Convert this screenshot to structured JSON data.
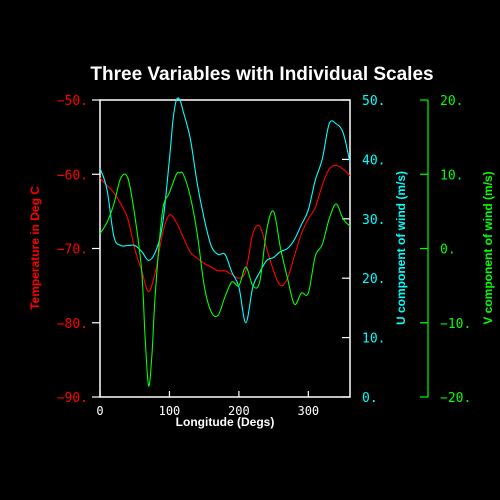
{
  "chart_data": {
    "type": "line",
    "title": "Three Variables with Individual Scales",
    "xlabel": "Longitude (Degs)",
    "xlim": [
      0,
      360
    ],
    "x_ticks": [
      "0",
      "100",
      "200",
      "300"
    ],
    "x_tick_values": [
      0,
      100,
      200,
      300
    ],
    "colors": {
      "background": "#000000",
      "frame": "#ffffff",
      "temperature": "#ff0000",
      "u_wind": "#00ffff",
      "v_wind": "#00ff00"
    },
    "series": [
      {
        "ylabel": "Temperature in Deg C",
        "color": "#ff0000",
        "axis_side": "left",
        "ylim": [
          -90,
          -50
        ],
        "y_ticks": [
          "−90.",
          "−80.",
          "−70.",
          "−60.",
          "−50."
        ],
        "y_tick_values": [
          -90,
          -80,
          -70,
          -60,
          -50
        ],
        "x": [
          0,
          10,
          20,
          30,
          40,
          50,
          60,
          70,
          80,
          90,
          100,
          110,
          120,
          130,
          140,
          150,
          160,
          170,
          180,
          190,
          200,
          210,
          220,
          230,
          240,
          250,
          260,
          270,
          280,
          290,
          300,
          310,
          320,
          330,
          340,
          350,
          360
        ],
        "values": [
          -60.5,
          -61.5,
          -62.5,
          -64.0,
          -66.0,
          -70.0,
          -73.0,
          -75.8,
          -73.0,
          -68.0,
          -65.5,
          -66.5,
          -68.5,
          -70.5,
          -71.3,
          -72.0,
          -72.5,
          -73.0,
          -73.0,
          -73.5,
          -74.0,
          -73.0,
          -68.0,
          -67.0,
          -70.0,
          -73.0,
          -75.0,
          -74.0,
          -71.0,
          -68.0,
          -66.0,
          -64.5,
          -61.5,
          -59.3,
          -58.8,
          -59.3,
          -60.2
        ]
      },
      {
        "ylabel": "U component of wind (m/s)",
        "color": "#00ffff",
        "axis_side": "right",
        "ylim": [
          0,
          50
        ],
        "y_ticks": [
          "0.",
          "10.",
          "20.",
          "30.",
          "40.",
          "50."
        ],
        "y_tick_values": [
          0,
          10,
          20,
          30,
          40,
          50
        ],
        "x": [
          0,
          10,
          20,
          30,
          40,
          50,
          60,
          70,
          80,
          90,
          100,
          105,
          110,
          115,
          120,
          130,
          140,
          150,
          160,
          170,
          180,
          190,
          200,
          210,
          220,
          230,
          240,
          250,
          260,
          270,
          280,
          290,
          300,
          310,
          320,
          330,
          340,
          350,
          360
        ],
        "values": [
          38.5,
          35.0,
          27.0,
          25.5,
          25.5,
          25.5,
          24.5,
          23.0,
          24.5,
          29.0,
          40.0,
          46.5,
          50.2,
          50.0,
          48.0,
          43.5,
          36.0,
          30.0,
          25.5,
          24.0,
          24.0,
          21.0,
          18.5,
          12.5,
          18.5,
          21.0,
          23.0,
          23.5,
          24.5,
          25.0,
          26.5,
          29.0,
          31.5,
          36.5,
          40.0,
          46.0,
          46.0,
          44.5,
          39.5
        ]
      },
      {
        "ylabel": "V component of wind (m/s)",
        "color": "#00ff00",
        "axis_side": "right",
        "ylim": [
          -20,
          20
        ],
        "y_ticks": [
          "−20.",
          "−10.",
          "0.",
          "10.",
          "20."
        ],
        "y_tick_values": [
          -20,
          -10,
          0,
          10,
          20
        ],
        "x": [
          0,
          10,
          20,
          30,
          40,
          50,
          60,
          65,
          70,
          75,
          80,
          90,
          100,
          110,
          115,
          120,
          130,
          140,
          150,
          160,
          170,
          180,
          190,
          200,
          210,
          220,
          230,
          240,
          250,
          260,
          270,
          280,
          290,
          300,
          310,
          320,
          330,
          340,
          350,
          360
        ],
        "values": [
          2.0,
          3.5,
          6.0,
          9.5,
          9.5,
          4.5,
          -3.0,
          -12.0,
          -18.5,
          -14.0,
          -5.5,
          5.0,
          7.5,
          10.0,
          10.2,
          10.0,
          7.0,
          2.0,
          -5.0,
          -8.5,
          -9.0,
          -6.5,
          -4.5,
          -5.0,
          -2.5,
          -5.0,
          -4.5,
          2.5,
          5.0,
          0.0,
          -4.0,
          -7.5,
          -6.0,
          -6.0,
          -1.0,
          0.5,
          4.0,
          6.0,
          4.0,
          3.0
        ]
      }
    ]
  }
}
